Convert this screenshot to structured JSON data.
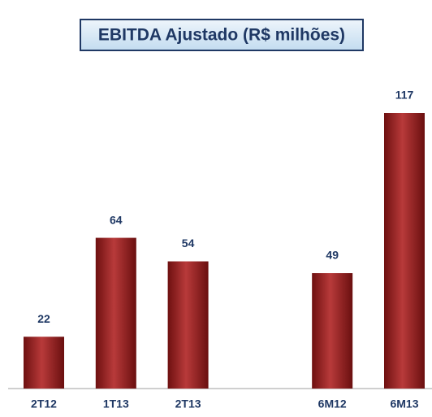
{
  "chart_data": {
    "type": "bar",
    "title": "EBITDA Ajustado (R$ milhões)",
    "categories": [
      "2T12",
      "1T13",
      "2T13",
      null,
      "6M12",
      "6M13"
    ],
    "values": [
      22,
      64,
      54,
      null,
      49,
      117
    ],
    "color": "#9b2222"
  }
}
